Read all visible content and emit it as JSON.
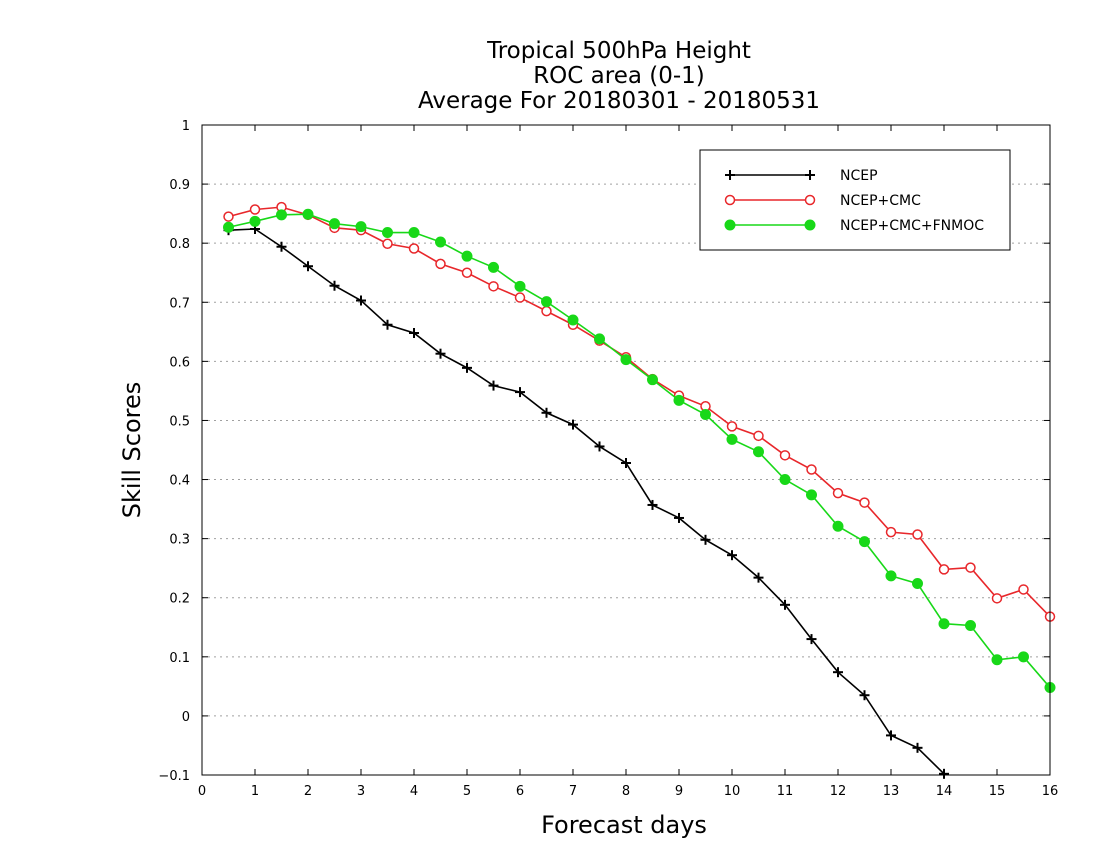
{
  "chart_data": {
    "type": "line",
    "title_lines": [
      "Tropical 500hPa Height",
      "ROC area (0-1)",
      "Average For 20180301 - 20180531"
    ],
    "xlabel": "Forecast days",
    "ylabel": "Skill Scores",
    "xlim": [
      0,
      16
    ],
    "ylim": [
      -0.1,
      1
    ],
    "xticks": [
      "0",
      "1",
      "2",
      "3",
      "4",
      "5",
      "6",
      "7",
      "8",
      "9",
      "10",
      "11",
      "12",
      "13",
      "14",
      "15",
      "16"
    ],
    "yticks": [
      "−0.1",
      "0",
      "0.1",
      "0.2",
      "0.3",
      "0.4",
      "0.5",
      "0.6",
      "0.7",
      "0.8",
      "0.9",
      "1"
    ],
    "grid": "horizontal dotted",
    "legend_position": "top-right",
    "x": [
      0.5,
      1.0,
      1.5,
      2.0,
      2.5,
      3.0,
      3.5,
      4.0,
      4.5,
      5.0,
      5.5,
      6.0,
      6.5,
      7.0,
      7.5,
      8.0,
      8.5,
      9.0,
      9.5,
      10.0,
      10.5,
      11.0,
      11.5,
      12.0,
      12.5,
      13.0,
      13.5,
      14.0,
      14.5,
      15.0,
      15.5,
      16.0
    ],
    "series": [
      {
        "name": "NCEP",
        "color": "#000000",
        "marker": "plus",
        "values": [
          0.822,
          0.824,
          0.794,
          0.761,
          0.728,
          0.703,
          0.662,
          0.648,
          0.613,
          0.589,
          0.559,
          0.548,
          0.513,
          0.493,
          0.456,
          0.428,
          0.357,
          0.335,
          0.298,
          0.272,
          0.234,
          0.188,
          0.13,
          0.074,
          0.035,
          -0.033,
          -0.054,
          -0.098,
          null,
          null,
          null,
          null
        ]
      },
      {
        "name": "NCEP+CMC",
        "color": "#e8272b",
        "marker": "open-circle",
        "values": [
          0.845,
          0.857,
          0.861,
          0.848,
          0.826,
          0.822,
          0.799,
          0.791,
          0.765,
          0.75,
          0.727,
          0.708,
          0.685,
          0.662,
          0.635,
          0.607,
          0.57,
          0.542,
          0.524,
          0.49,
          0.474,
          0.441,
          0.417,
          0.377,
          0.361,
          0.311,
          0.307,
          0.248,
          0.251,
          0.199,
          0.214,
          0.168
        ]
      },
      {
        "name": "NCEP+CMC+FNMOC",
        "color": "#18d818",
        "marker": "filled-circle",
        "values": [
          0.827,
          0.837,
          0.848,
          0.849,
          0.833,
          0.828,
          0.818,
          0.818,
          0.802,
          0.778,
          0.759,
          0.727,
          0.701,
          0.67,
          0.638,
          0.603,
          0.569,
          0.534,
          0.51,
          0.468,
          0.447,
          0.4,
          0.374,
          0.321,
          0.295,
          0.237,
          0.224,
          0.156,
          0.153,
          0.095,
          0.1,
          0.048
        ]
      }
    ]
  }
}
